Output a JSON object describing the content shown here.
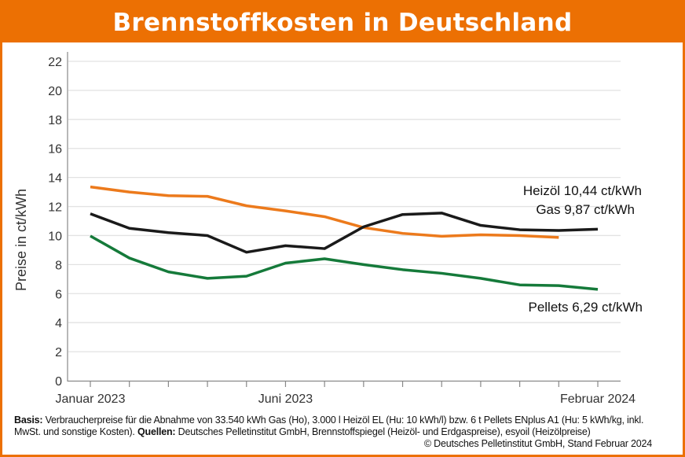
{
  "title": "Brennstoffkosten in Deutschland",
  "colors": {
    "frame": "#ec7003",
    "heizoel": "#1a1a1a",
    "gas": "#ec7a1c",
    "pellets": "#157a3a",
    "grid": "#e2e2e2"
  },
  "chart_data": {
    "type": "line",
    "title": "Brennstoffkosten in Deutschland",
    "ylabel": "Preise in ct/kWh",
    "xlabel": "",
    "ylim": [
      0,
      22
    ],
    "yticks": [
      0,
      2,
      4,
      6,
      8,
      10,
      12,
      14,
      16,
      18,
      20,
      22
    ],
    "grid": true,
    "x": [
      "2023-01",
      "2023-02",
      "2023-03",
      "2023-04",
      "2023-05",
      "2023-06",
      "2023-07",
      "2023-08",
      "2023-09",
      "2023-10",
      "2023-11",
      "2023-12",
      "2024-01",
      "2024-02"
    ],
    "xtick_labels": [
      {
        "month": "2023-01",
        "label": "Januar 2023"
      },
      {
        "month": "2023-06",
        "label": "Juni 2023"
      },
      {
        "month": "2024-02",
        "label": "Februar 2024"
      }
    ],
    "series": [
      {
        "key": "heizoel",
        "name": "Heizöl",
        "end_label": "10,44 ct/kWh",
        "values": [
          11.5,
          10.5,
          10.2,
          10.0,
          8.85,
          9.3,
          9.1,
          10.6,
          11.45,
          11.55,
          10.7,
          10.4,
          10.35,
          10.44
        ]
      },
      {
        "key": "gas",
        "name": "Gas",
        "end_label": "9,87 ct/kWh",
        "values": [
          13.35,
          13.0,
          12.75,
          12.7,
          12.05,
          11.7,
          11.3,
          10.55,
          10.15,
          9.95,
          10.05,
          10.0,
          9.87,
          null
        ]
      },
      {
        "key": "pellets",
        "name": "Pellets",
        "end_label": "6,29 ct/kWh",
        "values": [
          9.97,
          8.45,
          7.5,
          7.05,
          7.2,
          8.1,
          8.4,
          8.0,
          7.65,
          7.4,
          7.05,
          6.6,
          6.55,
          6.29
        ]
      }
    ]
  },
  "footer": {
    "basis_label": "Basis:",
    "basis_text": " Verbraucherpreise für die Abnahme von 33.540 kWh Gas (Ho), 3.000 l Heizöl EL (Hu: 10 kWh/l) bzw. 6 t Pellets ENplus A1 (Hu: 5 kWh/kg, inkl. MwSt. und sonstige Kosten).",
    "sources_label": " Quellen:",
    "sources_text": " Deutsches Pelletinstitut GmbH, Brennstoffspiegel (Heizöl- und Erdgaspreise), esyoil (Heizölpreise)",
    "copyright": "© Deutsches Pelletinstitut GmbH, Stand Februar 2024"
  }
}
